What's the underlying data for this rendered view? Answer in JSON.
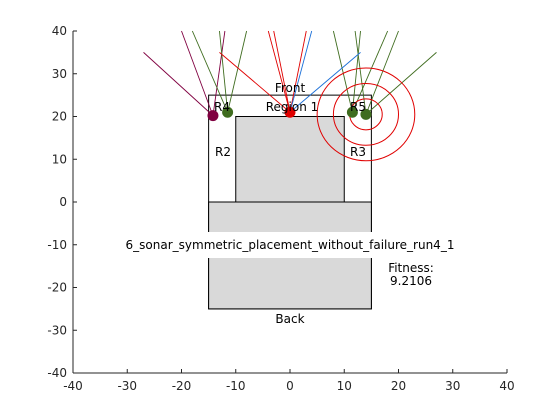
{
  "chart_data": {
    "type": "scatter",
    "title": "6_sonar_symmetric_placement_without_failure_run4_1",
    "xlim": [
      -40,
      40
    ],
    "ylim": [
      -40,
      40
    ],
    "x_ticks": [
      -40,
      -30,
      -20,
      -10,
      0,
      10,
      20,
      30,
      40
    ],
    "y_ticks": [
      -40,
      -30,
      -20,
      -10,
      0,
      10,
      20,
      30,
      40
    ],
    "x_tick_labels": [
      "-40",
      "-30",
      "-20",
      "-10",
      "0",
      "10",
      "20",
      "30",
      "40"
    ],
    "y_tick_labels": [
      "-40",
      "-30",
      "-20",
      "-10",
      "0",
      "10",
      "20",
      "30",
      "40"
    ],
    "grid": false,
    "fitness_label": "Fitness:",
    "fitness_value": "9.2106",
    "region_labels": {
      "front": "Front",
      "region1": "Region 1",
      "r2": "R2",
      "r3": "R3",
      "r4": "R4",
      "r5": "R5",
      "back": "Back"
    },
    "shapes": {
      "outer_box": {
        "x": [
          -15,
          15
        ],
        "y": [
          -25,
          25
        ]
      },
      "inner_body": {
        "x": [
          -10,
          10
        ],
        "y": [
          0,
          20
        ]
      },
      "lower_body": {
        "x": [
          -15,
          15
        ],
        "y": [
          -25,
          0
        ]
      }
    },
    "sonars": [
      {
        "x": -14.2,
        "y": 20.2,
        "color": "#800040",
        "rays": [
          [
            -27,
            35
          ],
          [
            -20,
            40
          ],
          [
            -12,
            40
          ]
        ]
      },
      {
        "x": -11.5,
        "y": 21.0,
        "color": "#3f6c1f",
        "rays": [
          [
            -18,
            40
          ],
          [
            -13,
            40
          ],
          [
            -8,
            40
          ]
        ]
      },
      {
        "x": 0.0,
        "y": 21.0,
        "color": "#e00000",
        "rays": [
          [
            -3,
            40
          ],
          [
            3,
            40
          ]
        ]
      },
      {
        "x": 11.5,
        "y": 21.0,
        "color": "#3f6c1f",
        "rays": [
          [
            8,
            40
          ],
          [
            13,
            40
          ],
          [
            18,
            40
          ]
        ]
      },
      {
        "x": 14.0,
        "y": 20.5,
        "color": "#3f6c1f",
        "rays": [
          [
            12,
            40
          ],
          [
            20,
            40
          ],
          [
            27,
            35
          ]
        ]
      }
    ],
    "extra_rays": [
      {
        "from": [
          0,
          21
        ],
        "to": [
          -13,
          35
        ],
        "color": "#e00000"
      },
      {
        "from": [
          0,
          21
        ],
        "to": [
          13,
          35
        ],
        "color": "#1a6fd8"
      },
      {
        "from": [
          0,
          21
        ],
        "to": [
          4,
          40
        ],
        "color": "#1a6fd8"
      },
      {
        "from": [
          0,
          21
        ],
        "to": [
          -4,
          40
        ],
        "color": "#e00000"
      }
    ],
    "circles": {
      "center": [
        14.0,
        20.5
      ],
      "radii": [
        3,
        6,
        9
      ],
      "color": "#e00000"
    }
  }
}
